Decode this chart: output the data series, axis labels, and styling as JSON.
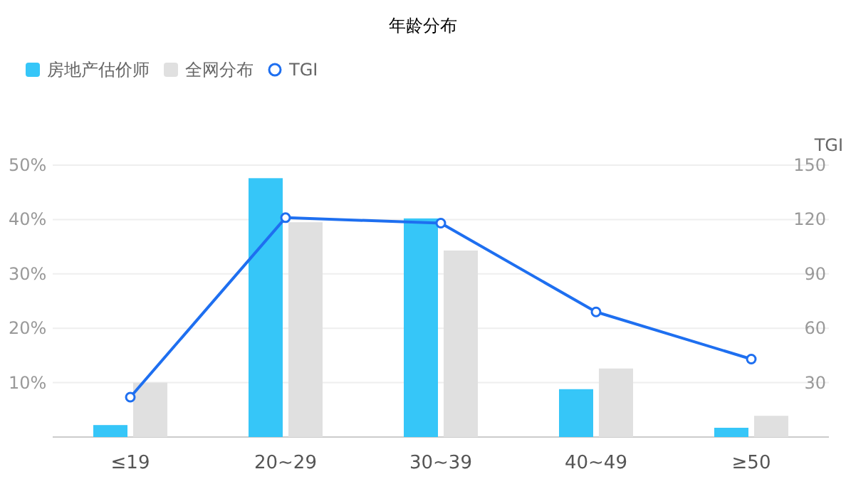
{
  "chart_data": {
    "type": "bar",
    "title": "年龄分布",
    "y2label": "TGI",
    "categories": [
      "≤19",
      "20~29",
      "30~39",
      "40~49",
      "≥50"
    ],
    "series": [
      {
        "name": "房地产估价师",
        "color": "#36c6f8",
        "values": [
          2.2,
          47.6,
          40.2,
          8.8,
          1.7
        ]
      },
      {
        "name": "全网分布",
        "color": "#e0e0e0",
        "values": [
          10,
          39.5,
          34.3,
          12.6,
          3.9
        ]
      },
      {
        "name": "TGI",
        "type": "line",
        "axis": "y2",
        "color": "#1e6ff0",
        "marker": "circle",
        "values": [
          22,
          121,
          118,
          69,
          43
        ]
      }
    ],
    "ylim": [
      0,
      50
    ],
    "yticks": [
      {
        "value": 10,
        "label": "10%"
      },
      {
        "value": 20,
        "label": "20%"
      },
      {
        "value": 30,
        "label": "30%"
      },
      {
        "value": 40,
        "label": "40%"
      },
      {
        "value": 50,
        "label": "50%"
      }
    ],
    "y2lim": [
      0,
      150
    ],
    "y2ticks": [
      30,
      60,
      90,
      120,
      150
    ],
    "grid": "y",
    "legend": "top left"
  }
}
